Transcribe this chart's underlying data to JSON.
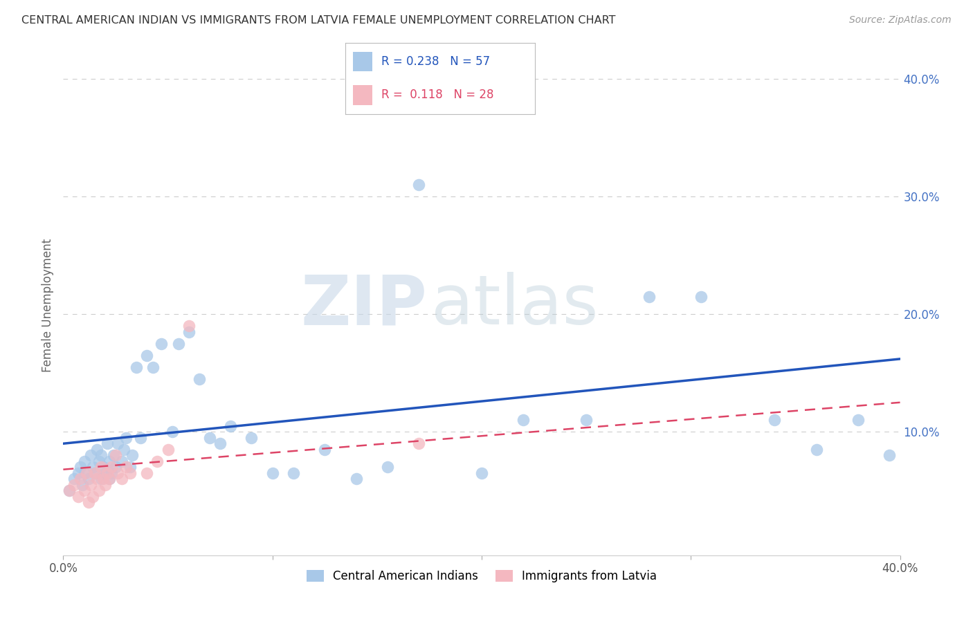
{
  "title": "CENTRAL AMERICAN INDIAN VS IMMIGRANTS FROM LATVIA FEMALE UNEMPLOYMENT CORRELATION CHART",
  "source": "Source: ZipAtlas.com",
  "ylabel": "Female Unemployment",
  "y_ticks": [
    "40.0%",
    "30.0%",
    "20.0%",
    "10.0%"
  ],
  "y_tick_vals": [
    0.4,
    0.3,
    0.2,
    0.1
  ],
  "xlim": [
    0.0,
    0.4
  ],
  "ylim": [
    -0.005,
    0.42
  ],
  "r_blue": 0.238,
  "n_blue": 57,
  "r_pink": 0.118,
  "n_pink": 28,
  "legend_label_blue": "Central American Indians",
  "legend_label_pink": "Immigrants from Latvia",
  "blue_color": "#a8c8e8",
  "pink_color": "#f4b8c0",
  "blue_line_color": "#2255bb",
  "pink_line_color": "#dd4466",
  "watermark_zip": "ZIP",
  "watermark_atlas": "atlas",
  "blue_x": [
    0.003,
    0.005,
    0.007,
    0.008,
    0.009,
    0.01,
    0.01,
    0.012,
    0.013,
    0.014,
    0.015,
    0.016,
    0.017,
    0.018,
    0.018,
    0.019,
    0.02,
    0.021,
    0.022,
    0.022,
    0.023,
    0.024,
    0.025,
    0.026,
    0.028,
    0.029,
    0.03,
    0.032,
    0.033,
    0.035,
    0.037,
    0.04,
    0.043,
    0.047,
    0.052,
    0.055,
    0.06,
    0.065,
    0.07,
    0.075,
    0.08,
    0.09,
    0.1,
    0.11,
    0.125,
    0.14,
    0.155,
    0.17,
    0.2,
    0.22,
    0.25,
    0.28,
    0.305,
    0.34,
    0.36,
    0.38,
    0.395
  ],
  "blue_y": [
    0.05,
    0.06,
    0.065,
    0.07,
    0.055,
    0.065,
    0.075,
    0.06,
    0.08,
    0.07,
    0.065,
    0.085,
    0.075,
    0.06,
    0.08,
    0.07,
    0.065,
    0.09,
    0.075,
    0.06,
    0.065,
    0.08,
    0.07,
    0.09,
    0.075,
    0.085,
    0.095,
    0.07,
    0.08,
    0.155,
    0.095,
    0.165,
    0.155,
    0.175,
    0.1,
    0.175,
    0.185,
    0.145,
    0.095,
    0.09,
    0.105,
    0.095,
    0.065,
    0.065,
    0.085,
    0.06,
    0.07,
    0.31,
    0.065,
    0.11,
    0.11,
    0.215,
    0.215,
    0.11,
    0.085,
    0.11,
    0.08
  ],
  "pink_x": [
    0.003,
    0.005,
    0.007,
    0.008,
    0.01,
    0.011,
    0.012,
    0.013,
    0.014,
    0.015,
    0.016,
    0.017,
    0.018,
    0.019,
    0.02,
    0.021,
    0.022,
    0.023,
    0.025,
    0.026,
    0.028,
    0.03,
    0.032,
    0.04,
    0.045,
    0.05,
    0.06,
    0.17
  ],
  "pink_y": [
    0.05,
    0.055,
    0.045,
    0.06,
    0.05,
    0.065,
    0.04,
    0.055,
    0.045,
    0.065,
    0.06,
    0.05,
    0.07,
    0.06,
    0.055,
    0.065,
    0.06,
    0.07,
    0.08,
    0.065,
    0.06,
    0.07,
    0.065,
    0.065,
    0.075,
    0.085,
    0.19,
    0.09
  ],
  "blue_line_y0": 0.09,
  "blue_line_y1": 0.162,
  "pink_line_y0": 0.068,
  "pink_line_y1": 0.125
}
